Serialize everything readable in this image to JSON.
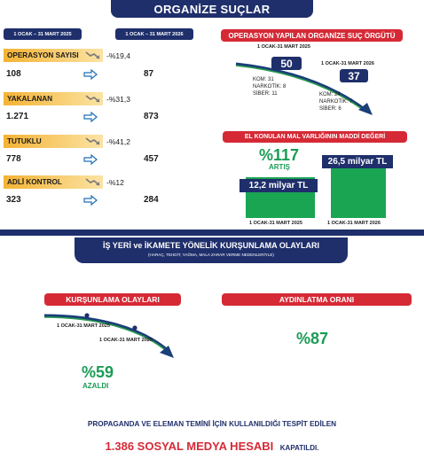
{
  "header": {
    "title": "ORGANİZE SUÇLAR"
  },
  "periods": {
    "left": "1 OCAK – 31 MART 2025",
    "right": "1 OCAK – 31 MART 2026"
  },
  "stats": [
    {
      "label": "OPERASYON SAYISI",
      "change": "-%19,4",
      "prev": "108",
      "curr": "87"
    },
    {
      "label": "YAKALANAN",
      "change": "-%31,3",
      "prev": "1.271",
      "curr": "873"
    },
    {
      "label": "TUTUKLU",
      "change": "-%41,2",
      "prev": "778",
      "curr": "457"
    },
    {
      "label": "ADLİ KONTROL",
      "change": "-%12",
      "prev": "323",
      "curr": "284"
    }
  ],
  "orgs": {
    "title": "OPERASYON YAPILAN ORGANİZE SUÇ ÖRGÜTÜ",
    "left_date": "1 OCAK-31 MART 2025",
    "right_date": "1 OCAK-31 MART 2026",
    "left_value": "50",
    "right_value": "37",
    "left_breakdown": [
      "KOM: 31",
      "NARKOTİK: 8",
      "SİBER: 11"
    ],
    "right_breakdown": [
      "KOM: 24",
      "NARKOTİK: 7",
      "SİBER: 6"
    ]
  },
  "assets": {
    "title": "EL KONULAN MAL VARLIĞININ MADDİ DEĞERİ",
    "increase": "%117",
    "increase_label": "ARTIŞ",
    "left_value": "12,2 milyar TL",
    "right_value": "26,5 milyar TL",
    "left_date": "1 OCAK-31 MART 2025",
    "right_date": "1 OCAK-31 MART 2026"
  },
  "section2": {
    "title": "İŞ YERİ ve İKAMETE YÖNELİK KURŞUNLAMA OLAYLARI",
    "subtitle": "(HARAÇ, TEHDİT, YAĞMA, MALA ZARAR VERME NEDENLERİYLE)"
  },
  "shooting": {
    "title": "KURŞUNLAMA OLAYLARI",
    "date_left": "1 OCAK-31 MART 2025",
    "date_right": "1 OCAK-31 MART 2026",
    "decrease": "%59",
    "decrease_label": "AZALDI"
  },
  "clearance": {
    "title": "AYDINLATMA ORANI",
    "value": "%87"
  },
  "footer": {
    "line1": "PROPAGANDA VE ELEMAN TEMİNİ İÇİN KULLANILDIĞI TESPİT EDİLEN",
    "highlight": "1.386 SOSYAL MEDYA HESABI",
    "suffix": "KAPATILDI."
  },
  "colors": {
    "navy": "#1f2f6b",
    "red": "#d52a36",
    "green": "#1a9c55",
    "gold": "#f4b334"
  }
}
